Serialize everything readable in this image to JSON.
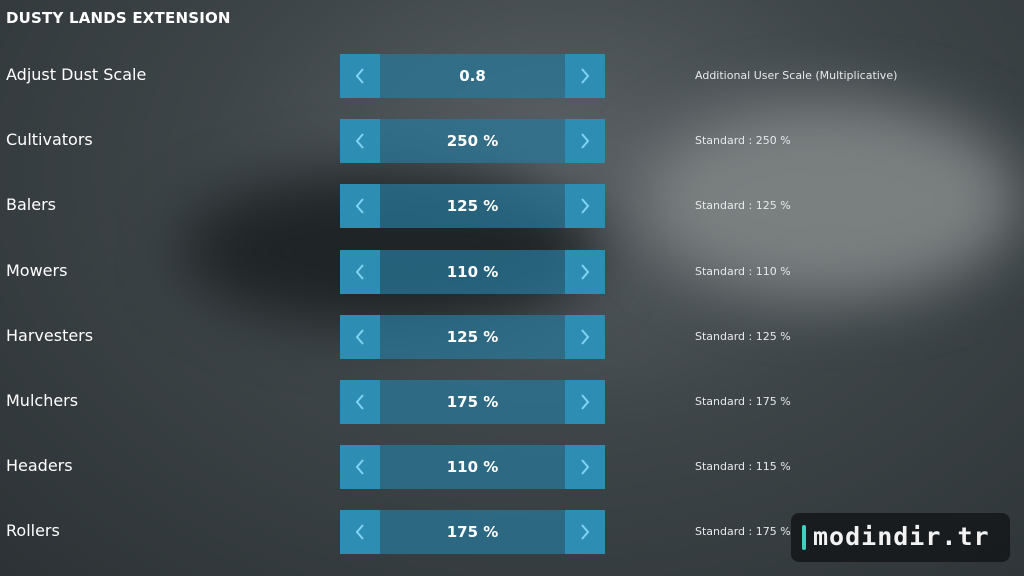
{
  "header": {
    "title": "DUSTY LANDS EXTENSION"
  },
  "settings": [
    {
      "label": "Adjust Dust Scale",
      "value": "0.8",
      "note": "Additional User Scale (Multiplicative)"
    },
    {
      "label": "Cultivators",
      "value": "250 %",
      "note": "Standard : 250 %"
    },
    {
      "label": "Balers",
      "value": "125 %",
      "note": "Standard : 125 %"
    },
    {
      "label": "Mowers",
      "value": "110 %",
      "note": "Standard : 110 %"
    },
    {
      "label": "Harvesters",
      "value": "125 %",
      "note": "Standard : 125 %"
    },
    {
      "label": "Mulchers",
      "value": "175 %",
      "note": "Standard : 175 %"
    },
    {
      "label": "Headers",
      "value": "110 %",
      "note": "Standard : 115 %"
    },
    {
      "label": "Rollers",
      "value": "175 %",
      "note": "Standard : 175 %"
    }
  ],
  "watermark": {
    "text": "modindir.tr"
  }
}
